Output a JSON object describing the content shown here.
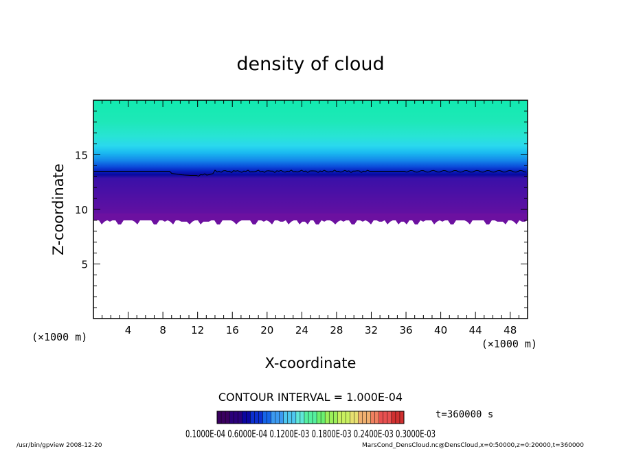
{
  "chart_data": {
    "type": "heatmap",
    "title": "density of cloud",
    "xlabel": "X-coordinate",
    "ylabel": "Z-coordinate",
    "x_unit_left": "(×1000 m)",
    "x_unit_right": "(×1000 m)",
    "x_range": [
      0,
      50
    ],
    "y_range": [
      0,
      20
    ],
    "x_ticks": [
      4,
      8,
      12,
      16,
      20,
      24,
      28,
      32,
      36,
      40,
      44,
      48
    ],
    "y_ticks": [
      5,
      10,
      15
    ],
    "cloud_base_z": 9.0,
    "contour_line_z": 13.3,
    "contour_interval_text": "CONTOUR INTERVAL = 1.000E-04",
    "colorbar": {
      "tick_labels": [
        "0.1000E-04",
        "0.6000E-04",
        "0.1200E-03",
        "0.1800E-03",
        "0.2400E-03",
        "0.3000E-03"
      ],
      "overlap_text": "0.1000E-04 0.6000E-04 0.1200E-03 0.1800E-03 0.2400E-03 0.3000E-03",
      "colors": [
        "#3a0060",
        "#2a007a",
        "#0b05a0",
        "#0c2fd0",
        "#1565e8",
        "#3c9af0",
        "#4fc8f0",
        "#60e8d8",
        "#55f0a0",
        "#6af070",
        "#9cf05a",
        "#c8f060",
        "#e8e070",
        "#f0b070",
        "#f08060",
        "#e85050",
        "#d03030"
      ]
    },
    "time_label": "t=360000 s",
    "footer_left": "/usr/bin/gpview   2008-12-20",
    "footer_right": "MarsCond_DensCloud.nc@DensCloud,x=0:50000,z=0:20000,t=360000"
  }
}
